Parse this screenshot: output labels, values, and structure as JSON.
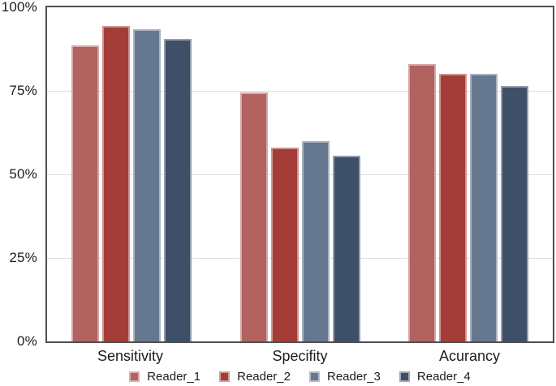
{
  "figure": {
    "background": "#ffffff"
  },
  "chart_data": {
    "type": "bar",
    "title": "",
    "xlabel": "",
    "ylabel": "",
    "categories": [
      "Sensitivity",
      "Specifity",
      "Acurancy"
    ],
    "series": [
      {
        "name": "Reader_1",
        "color": "#b2625f",
        "values": [
          88.5,
          74.5,
          83.0
        ]
      },
      {
        "name": "Reader_2",
        "color": "#a43d37",
        "values": [
          94.5,
          58.0,
          80.0
        ]
      },
      {
        "name": "Reader_3",
        "color": "#66788f",
        "values": [
          93.5,
          60.0,
          80.0
        ]
      },
      {
        "name": "Reader_4",
        "color": "#3e4f68",
        "values": [
          90.5,
          55.5,
          76.5
        ]
      }
    ],
    "ylim": [
      0,
      100
    ],
    "yticks": [
      {
        "value": 0,
        "label": "0%"
      },
      {
        "value": 25,
        "label": "25%"
      },
      {
        "value": 50,
        "label": "50%"
      },
      {
        "value": 75,
        "label": "75%"
      },
      {
        "value": 100,
        "label": "100%"
      }
    ],
    "gridline_values": [
      25,
      50,
      75
    ],
    "grid": true,
    "legend_position": "bottom",
    "colors": {
      "axis_border": "#4f4f4f",
      "gridline": "#dcdcdc",
      "text": "#1c1c1c",
      "bar_stroke": "rgba(255,255,255,0.45)"
    }
  }
}
